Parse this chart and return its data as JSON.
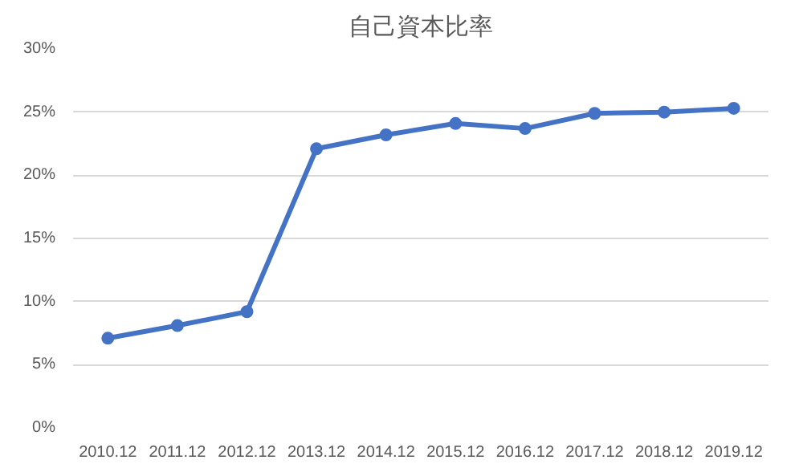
{
  "chart_data": {
    "type": "line",
    "title": "自己資本比率",
    "categories": [
      "2010.12",
      "2011.12",
      "2012.12",
      "2013.12",
      "2014.12",
      "2015.12",
      "2016.12",
      "2017.12",
      "2018.12",
      "2019.12"
    ],
    "series": [
      {
        "color": "#4472c4",
        "values": [
          7.1,
          8.1,
          9.2,
          22.1,
          23.2,
          24.1,
          23.7,
          24.9,
          25.0,
          25.3
        ]
      }
    ],
    "ylim": [
      0,
      30
    ],
    "yticks": [
      {
        "value": 0,
        "label": "0%"
      },
      {
        "value": 5,
        "label": "5%"
      },
      {
        "value": 10,
        "label": "10%"
      },
      {
        "value": 15,
        "label": "15%"
      },
      {
        "value": 20,
        "label": "20%"
      },
      {
        "value": 25,
        "label": "25%"
      },
      {
        "value": 30,
        "label": "30%"
      }
    ],
    "grid": "y",
    "marker": "circle",
    "line_style": "solid"
  }
}
